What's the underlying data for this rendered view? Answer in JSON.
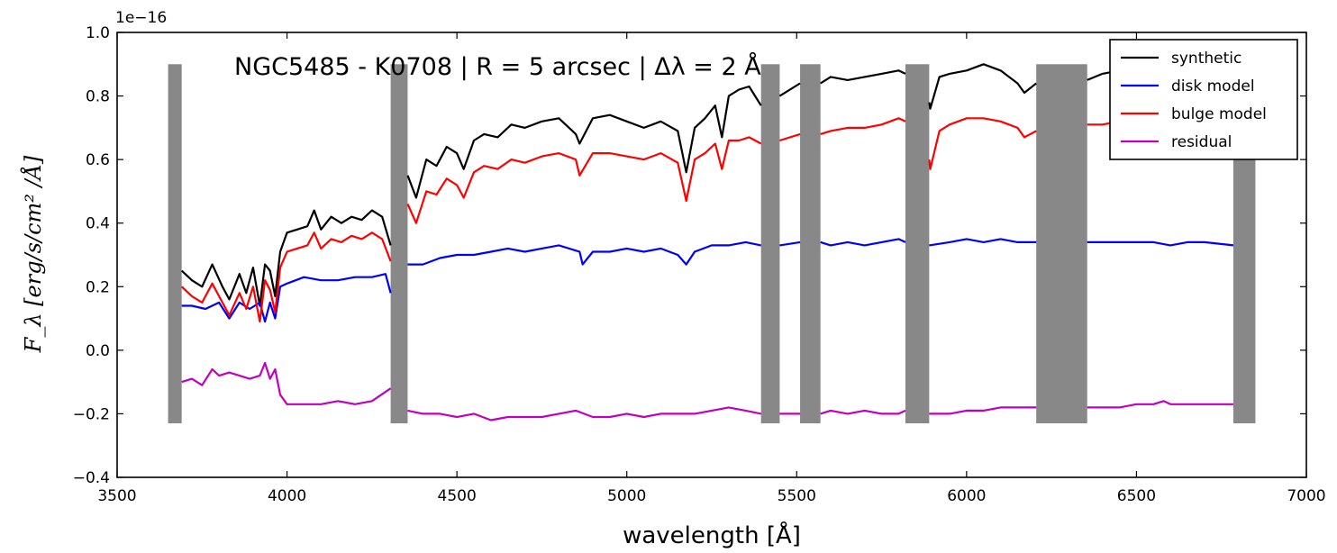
{
  "chart_data": {
    "type": "line",
    "title": "NGC5485 - K0708 | R = 5 arcsec | Δλ = 2 Å",
    "xlabel": "wavelength [Å]",
    "ylabel": "F_λ [erg/s/cm² /Å]",
    "y_offset_label": "1e−16",
    "xlim": [
      3500,
      7000
    ],
    "ylim": [
      -0.4,
      1.0
    ],
    "x_ticks": [
      3500,
      4000,
      4500,
      5000,
      5500,
      6000,
      6500,
      7000
    ],
    "x_tick_labels": [
      "3500",
      "4000",
      "4500",
      "5000",
      "5500",
      "6000",
      "6500",
      "7000"
    ],
    "y_ticks": [
      -0.4,
      -0.2,
      0.0,
      0.2,
      0.4,
      0.6,
      0.8,
      1.0
    ],
    "y_tick_labels": [
      "−0.4",
      "−0.2",
      "0.0",
      "0.2",
      "0.4",
      "0.6",
      "0.8",
      "1.0"
    ],
    "grid": false,
    "legend_position": "top-right",
    "masked_regions": {
      "color": "#888888",
      "y_range": [
        -0.23,
        0.9
      ],
      "x_ranges": [
        [
          3650,
          3690
        ],
        [
          4305,
          4355
        ],
        [
          5395,
          5450
        ],
        [
          5510,
          5570
        ],
        [
          5820,
          5890
        ],
        [
          6205,
          6355
        ],
        [
          6785,
          6850
        ]
      ]
    },
    "segments": [
      [
        3690,
        4305
      ],
      [
        4355,
        5395
      ],
      [
        5450,
        5510
      ],
      [
        5570,
        5820
      ],
      [
        5890,
        6205
      ],
      [
        6355,
        6785
      ]
    ],
    "series": [
      {
        "name": "synthetic",
        "color": "#000000",
        "x": [
          3690,
          3720,
          3750,
          3780,
          3810,
          3830,
          3860,
          3880,
          3900,
          3920,
          3935,
          3950,
          3965,
          3980,
          4000,
          4030,
          4060,
          4080,
          4100,
          4130,
          4160,
          4190,
          4220,
          4250,
          4280,
          4305,
          4355,
          4380,
          4410,
          4440,
          4470,
          4500,
          4520,
          4550,
          4580,
          4620,
          4660,
          4700,
          4750,
          4800,
          4850,
          4861,
          4900,
          4950,
          5000,
          5050,
          5100,
          5150,
          5175,
          5200,
          5230,
          5260,
          5280,
          5300,
          5330,
          5360,
          5395,
          5450,
          5510,
          5570,
          5600,
          5650,
          5700,
          5750,
          5800,
          5820,
          5890,
          5893,
          5920,
          5950,
          6000,
          6050,
          6100,
          6150,
          6170,
          6205,
          6355,
          6400,
          6450,
          6500,
          6550,
          6600,
          6650,
          6700,
          6785
        ],
        "values": [
          0.25,
          0.22,
          0.2,
          0.27,
          0.2,
          0.16,
          0.24,
          0.18,
          0.26,
          0.14,
          0.27,
          0.25,
          0.17,
          0.31,
          0.37,
          0.38,
          0.39,
          0.44,
          0.38,
          0.42,
          0.4,
          0.42,
          0.41,
          0.44,
          0.42,
          0.33,
          0.55,
          0.48,
          0.6,
          0.58,
          0.64,
          0.62,
          0.57,
          0.66,
          0.68,
          0.67,
          0.71,
          0.7,
          0.72,
          0.73,
          0.68,
          0.65,
          0.73,
          0.74,
          0.72,
          0.7,
          0.72,
          0.69,
          0.56,
          0.7,
          0.73,
          0.77,
          0.67,
          0.8,
          0.82,
          0.83,
          0.77,
          0.8,
          0.84,
          0.84,
          0.86,
          0.85,
          0.86,
          0.87,
          0.88,
          0.87,
          0.78,
          0.76,
          0.86,
          0.87,
          0.88,
          0.9,
          0.88,
          0.84,
          0.81,
          0.84,
          0.85,
          0.87,
          0.88,
          0.89,
          0.88,
          0.87,
          0.88,
          0.89,
          0.88
        ]
      },
      {
        "name": "disk model",
        "color": "#0000ff",
        "x": [
          3690,
          3720,
          3760,
          3800,
          3830,
          3860,
          3890,
          3920,
          3935,
          3950,
          3965,
          3980,
          4000,
          4050,
          4100,
          4150,
          4200,
          4250,
          4290,
          4305,
          4355,
          4400,
          4450,
          4500,
          4550,
          4600,
          4650,
          4700,
          4750,
          4800,
          4861,
          4870,
          4900,
          4950,
          5000,
          5050,
          5100,
          5150,
          5175,
          5200,
          5250,
          5300,
          5350,
          5395,
          5450,
          5510,
          5570,
          5600,
          5650,
          5700,
          5750,
          5800,
          5820,
          5890,
          5950,
          6000,
          6050,
          6100,
          6150,
          6205,
          6355,
          6400,
          6450,
          6500,
          6550,
          6600,
          6650,
          6700,
          6785
        ],
        "values": [
          0.14,
          0.14,
          0.13,
          0.15,
          0.1,
          0.15,
          0.13,
          0.15,
          0.09,
          0.15,
          0.1,
          0.2,
          0.21,
          0.23,
          0.22,
          0.22,
          0.23,
          0.23,
          0.24,
          0.18,
          0.27,
          0.27,
          0.29,
          0.3,
          0.3,
          0.31,
          0.32,
          0.31,
          0.32,
          0.33,
          0.31,
          0.27,
          0.31,
          0.31,
          0.32,
          0.31,
          0.32,
          0.3,
          0.27,
          0.31,
          0.33,
          0.33,
          0.34,
          0.33,
          0.33,
          0.34,
          0.34,
          0.33,
          0.34,
          0.33,
          0.34,
          0.35,
          0.34,
          0.33,
          0.34,
          0.35,
          0.34,
          0.35,
          0.34,
          0.34,
          0.34,
          0.34,
          0.34,
          0.34,
          0.34,
          0.33,
          0.34,
          0.34,
          0.33
        ]
      },
      {
        "name": "bulge model",
        "color": "#ff0000",
        "x": [
          3690,
          3720,
          3750,
          3780,
          3810,
          3830,
          3860,
          3880,
          3900,
          3920,
          3935,
          3950,
          3965,
          3980,
          4000,
          4030,
          4060,
          4080,
          4100,
          4130,
          4160,
          4190,
          4220,
          4250,
          4280,
          4305,
          4355,
          4380,
          4410,
          4440,
          4470,
          4500,
          4520,
          4550,
          4580,
          4620,
          4660,
          4700,
          4750,
          4800,
          4850,
          4861,
          4900,
          4950,
          5000,
          5050,
          5100,
          5150,
          5175,
          5200,
          5230,
          5260,
          5280,
          5300,
          5330,
          5360,
          5395,
          5450,
          5510,
          5570,
          5600,
          5650,
          5700,
          5750,
          5800,
          5820,
          5890,
          5893,
          5920,
          5950,
          6000,
          6050,
          6100,
          6150,
          6170,
          6205,
          6355,
          6400,
          6450,
          6500,
          6550,
          6600,
          6650,
          6700,
          6785
        ],
        "values": [
          0.2,
          0.17,
          0.15,
          0.21,
          0.15,
          0.11,
          0.18,
          0.13,
          0.2,
          0.09,
          0.22,
          0.19,
          0.12,
          0.26,
          0.31,
          0.32,
          0.33,
          0.37,
          0.32,
          0.35,
          0.34,
          0.36,
          0.35,
          0.37,
          0.35,
          0.28,
          0.46,
          0.4,
          0.5,
          0.49,
          0.54,
          0.52,
          0.48,
          0.56,
          0.58,
          0.57,
          0.6,
          0.59,
          0.61,
          0.62,
          0.6,
          0.55,
          0.62,
          0.62,
          0.61,
          0.6,
          0.62,
          0.59,
          0.47,
          0.6,
          0.62,
          0.65,
          0.57,
          0.66,
          0.66,
          0.67,
          0.65,
          0.66,
          0.68,
          0.68,
          0.69,
          0.7,
          0.7,
          0.71,
          0.73,
          0.72,
          0.6,
          0.57,
          0.69,
          0.71,
          0.73,
          0.73,
          0.72,
          0.7,
          0.67,
          0.69,
          0.71,
          0.71,
          0.72,
          0.72,
          0.71,
          0.71,
          0.72,
          0.72,
          0.71
        ]
      },
      {
        "name": "residual",
        "color": "#bf00bf",
        "x": [
          3690,
          3720,
          3750,
          3780,
          3800,
          3830,
          3860,
          3890,
          3920,
          3935,
          3950,
          3965,
          3980,
          4000,
          4050,
          4100,
          4150,
          4200,
          4250,
          4305,
          4355,
          4400,
          4450,
          4500,
          4550,
          4600,
          4650,
          4700,
          4750,
          4800,
          4850,
          4900,
          4950,
          5000,
          5050,
          5100,
          5150,
          5200,
          5250,
          5300,
          5350,
          5395,
          5450,
          5510,
          5570,
          5600,
          5650,
          5700,
          5750,
          5800,
          5820,
          5890,
          5950,
          6000,
          6050,
          6100,
          6150,
          6205,
          6355,
          6400,
          6450,
          6500,
          6550,
          6580,
          6600,
          6650,
          6700,
          6785
        ],
        "values": [
          -0.1,
          -0.09,
          -0.11,
          -0.06,
          -0.08,
          -0.07,
          -0.08,
          -0.09,
          -0.08,
          -0.04,
          -0.09,
          -0.06,
          -0.14,
          -0.17,
          -0.17,
          -0.17,
          -0.16,
          -0.17,
          -0.16,
          -0.12,
          -0.19,
          -0.2,
          -0.2,
          -0.21,
          -0.2,
          -0.22,
          -0.21,
          -0.21,
          -0.21,
          -0.2,
          -0.19,
          -0.21,
          -0.21,
          -0.2,
          -0.21,
          -0.2,
          -0.2,
          -0.2,
          -0.19,
          -0.18,
          -0.19,
          -0.2,
          -0.2,
          -0.2,
          -0.2,
          -0.19,
          -0.2,
          -0.19,
          -0.2,
          -0.2,
          -0.19,
          -0.2,
          -0.2,
          -0.19,
          -0.19,
          -0.18,
          -0.18,
          -0.18,
          -0.18,
          -0.18,
          -0.18,
          -0.17,
          -0.17,
          -0.16,
          -0.17,
          -0.17,
          -0.17,
          -0.17
        ]
      }
    ]
  }
}
